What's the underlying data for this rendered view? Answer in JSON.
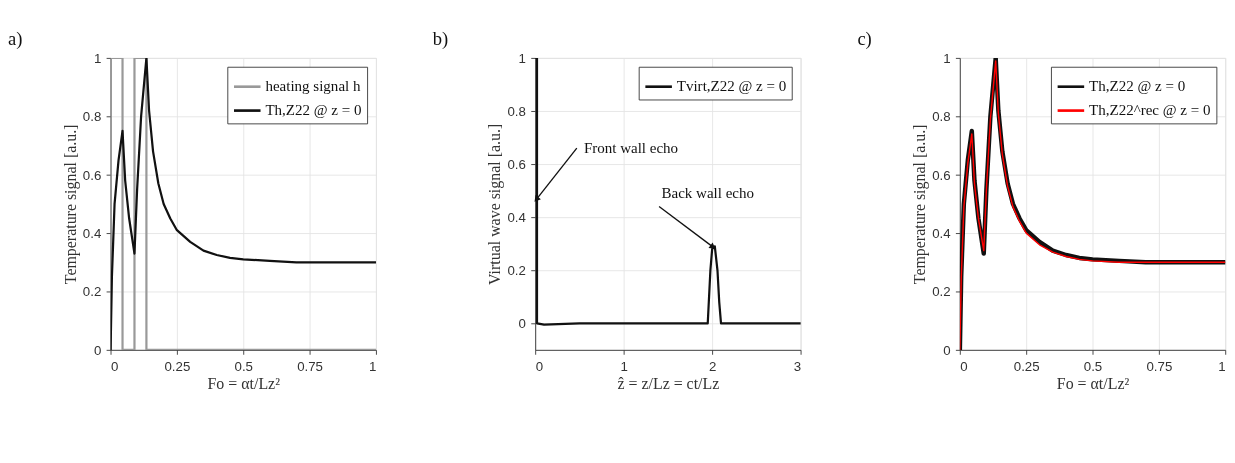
{
  "chart_data": [
    {
      "type": "line",
      "title": "a)",
      "xlabel": "Fo = αt/Lz²",
      "ylabel": "Temperature signal [a.u.]",
      "xlim": [
        0,
        1
      ],
      "ylim": [
        0,
        1
      ],
      "xticks": [
        0,
        0.25,
        0.5,
        0.75,
        1
      ],
      "yticks": [
        0,
        0.2,
        0.4,
        0.6,
        0.8,
        1
      ],
      "grid": true,
      "legend": "top right",
      "series": [
        {
          "name": "heating signal h",
          "color": "#999999",
          "x": [
            0,
            0,
            0.045,
            0.045,
            0.09,
            0.09,
            0.135,
            0.135,
            1
          ],
          "values": [
            0,
            1,
            1,
            0,
            0,
            1,
            1,
            0,
            0
          ]
        },
        {
          "name": "Th,Z22 @ z = 0",
          "color": "#111111",
          "x": [
            0,
            0.005,
            0.015,
            0.03,
            0.045,
            0.055,
            0.07,
            0.09,
            0.1,
            0.115,
            0.125,
            0.135,
            0.145,
            0.16,
            0.18,
            0.2,
            0.225,
            0.25,
            0.3,
            0.35,
            0.4,
            0.45,
            0.5,
            0.6,
            0.7,
            0.8,
            0.9,
            1
          ],
          "values": [
            0,
            0.25,
            0.5,
            0.65,
            0.75,
            0.58,
            0.45,
            0.33,
            0.55,
            0.8,
            0.9,
            1.0,
            0.82,
            0.68,
            0.57,
            0.5,
            0.45,
            0.41,
            0.37,
            0.34,
            0.325,
            0.315,
            0.31,
            0.305,
            0.3,
            0.3,
            0.3,
            0.3
          ]
        }
      ]
    },
    {
      "type": "line",
      "title": "b)",
      "xlabel": "ẑ = z/Lz = ct/Lz",
      "ylabel": "Virtual wave signal [a.u.]",
      "xlim": [
        0,
        3
      ],
      "ylim": [
        -0.1,
        1
      ],
      "xticks": [
        0,
        1,
        2,
        3
      ],
      "yticks": [
        0,
        0.2,
        0.4,
        0.6,
        0.8,
        1
      ],
      "grid": true,
      "legend": "top right",
      "annotations": [
        {
          "text": "Front wall echo",
          "x": 0.02,
          "y": 0.47
        },
        {
          "text": "Back wall echo",
          "x": 2.0,
          "y": 0.29
        }
      ],
      "series": [
        {
          "name": "Tvirt,Z22 @ z = 0",
          "color": "#111111",
          "x": [
            0,
            0.02,
            0.02,
            0.1,
            0.5,
            1.0,
            1.95,
            1.98,
            2.0,
            2.03,
            2.06,
            2.08,
            2.1,
            2.5,
            3
          ],
          "values": [
            1,
            1,
            0,
            -0.005,
            0,
            0,
            0,
            0.2,
            0.28,
            0.29,
            0.2,
            0.08,
            0,
            0,
            0
          ]
        }
      ]
    },
    {
      "type": "line",
      "title": "c)",
      "xlabel": "Fo = αt/Lz²",
      "ylabel": "Temperature signal [a.u.]",
      "xlim": [
        0,
        1
      ],
      "ylim": [
        0,
        1
      ],
      "xticks": [
        0,
        0.25,
        0.5,
        0.75,
        1
      ],
      "yticks": [
        0,
        0.2,
        0.4,
        0.6,
        0.8,
        1
      ],
      "grid": true,
      "legend": "top right",
      "series": [
        {
          "name": "Th,Z22 @ z = 0",
          "color": "#111111",
          "x": [
            0,
            0.005,
            0.015,
            0.03,
            0.045,
            0.055,
            0.07,
            0.09,
            0.1,
            0.115,
            0.125,
            0.135,
            0.145,
            0.16,
            0.18,
            0.2,
            0.225,
            0.25,
            0.3,
            0.35,
            0.4,
            0.45,
            0.5,
            0.6,
            0.7,
            0.8,
            0.9,
            1
          ],
          "values": [
            0,
            0.25,
            0.5,
            0.65,
            0.75,
            0.58,
            0.45,
            0.33,
            0.55,
            0.8,
            0.9,
            1.0,
            0.82,
            0.68,
            0.57,
            0.5,
            0.45,
            0.41,
            0.37,
            0.34,
            0.325,
            0.315,
            0.31,
            0.305,
            0.3,
            0.3,
            0.3,
            0.3
          ]
        },
        {
          "name": "Th,Z22^rec @ z = 0",
          "color": "#ff0000",
          "x": [
            0,
            0.005,
            0.015,
            0.03,
            0.045,
            0.055,
            0.07,
            0.09,
            0.1,
            0.115,
            0.125,
            0.135,
            0.145,
            0.16,
            0.18,
            0.2,
            0.225,
            0.25,
            0.3,
            0.35,
            0.4,
            0.45,
            0.5,
            0.6,
            0.7,
            0.8,
            0.9,
            1
          ],
          "values": [
            0,
            0.24,
            0.49,
            0.64,
            0.74,
            0.57,
            0.45,
            0.34,
            0.55,
            0.79,
            0.89,
            0.99,
            0.81,
            0.67,
            0.56,
            0.49,
            0.44,
            0.4,
            0.36,
            0.335,
            0.32,
            0.31,
            0.305,
            0.3,
            0.3,
            0.3,
            0.3,
            0.3
          ]
        }
      ]
    }
  ]
}
